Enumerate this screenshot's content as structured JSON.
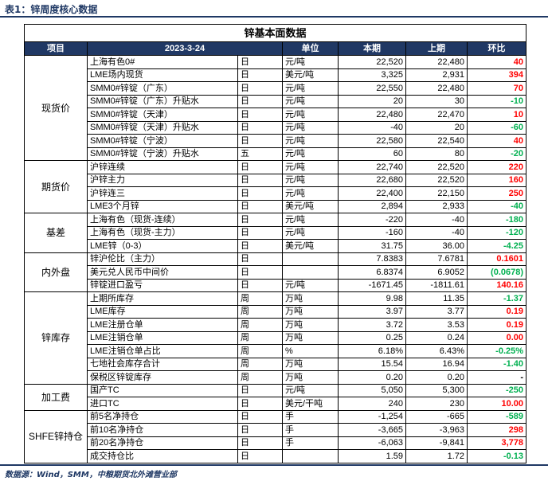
{
  "caption": "表1：锌周度核心数据",
  "source": "数据源：Wind，SMM，中粮期货北外滩营业部",
  "table_title": "锌基本面数据",
  "headers": [
    "项目",
    "2023-3-24",
    "",
    "单位",
    "本期",
    "上期",
    "环比"
  ],
  "groups": [
    {
      "name": "现货价",
      "rows": [
        {
          "item": "上海有色0#",
          "freq": "日",
          "unit": "元/吨",
          "cur": "22,520",
          "prev": "22,480",
          "chg": "40",
          "sign": "pos"
        },
        {
          "item": "LME场内现货",
          "freq": "日",
          "unit": "美元/吨",
          "cur": "3,325",
          "prev": "2,931",
          "chg": "394",
          "sign": "pos"
        },
        {
          "item": "SMM0#锌锭（广东）",
          "freq": "日",
          "unit": "元/吨",
          "cur": "22,550",
          "prev": "22,480",
          "chg": "70",
          "sign": "pos"
        },
        {
          "item": "SMM0#锌锭（广东）升贴水",
          "freq": "日",
          "unit": "元/吨",
          "cur": "20",
          "prev": "30",
          "chg": "-10",
          "sign": "neg"
        },
        {
          "item": "SMM0#锌锭（天津）",
          "freq": "日",
          "unit": "元/吨",
          "cur": "22,480",
          "prev": "22,470",
          "chg": "10",
          "sign": "pos"
        },
        {
          "item": "SMM0#锌锭（天津）升贴水",
          "freq": "日",
          "unit": "元/吨",
          "cur": "-40",
          "prev": "20",
          "chg": "-60",
          "sign": "neg"
        },
        {
          "item": "SMM0#锌锭（宁波）",
          "freq": "日",
          "unit": "元/吨",
          "cur": "22,580",
          "prev": "22,540",
          "chg": "40",
          "sign": "pos"
        },
        {
          "item": "SMM0#锌锭（宁波）升贴水",
          "freq": "五",
          "unit": "元/吨",
          "cur": "60",
          "prev": "80",
          "chg": "-20",
          "sign": "neg"
        }
      ]
    },
    {
      "name": "期货价",
      "rows": [
        {
          "item": "沪锌连续",
          "freq": "日",
          "unit": "元/吨",
          "cur": "22,740",
          "prev": "22,520",
          "chg": "220",
          "sign": "pos"
        },
        {
          "item": "沪锌主力",
          "freq": "日",
          "unit": "元/吨",
          "cur": "22,680",
          "prev": "22,520",
          "chg": "160",
          "sign": "pos"
        },
        {
          "item": "沪锌连三",
          "freq": "日",
          "unit": "元/吨",
          "cur": "22,400",
          "prev": "22,150",
          "chg": "250",
          "sign": "pos"
        },
        {
          "item": "LME3个月锌",
          "freq": "日",
          "unit": "美元/吨",
          "cur": "2,894",
          "prev": "2,933",
          "chg": "-40",
          "sign": "neg"
        }
      ]
    },
    {
      "name": "基差",
      "rows": [
        {
          "item": "上海有色（现货-连续）",
          "freq": "日",
          "unit": "元/吨",
          "cur": "-220",
          "prev": "-40",
          "chg": "-180",
          "sign": "neg"
        },
        {
          "item": "上海有色（现货-主力）",
          "freq": "日",
          "unit": "元/吨",
          "cur": "-160",
          "prev": "-40",
          "chg": "-120",
          "sign": "neg"
        },
        {
          "item": "LME锌（0-3）",
          "freq": "日",
          "unit": "美元/吨",
          "cur": "31.75",
          "prev": "36.00",
          "chg": "-4.25",
          "sign": "neg"
        }
      ]
    },
    {
      "name": "内外盘",
      "rows": [
        {
          "item": "锌沪伦比（主力）",
          "freq": "日",
          "unit": "",
          "cur": "7.8383",
          "prev": "7.6781",
          "chg": "0.1601",
          "sign": "pos"
        },
        {
          "item": "美元兑人民币中间价",
          "freq": "日",
          "unit": "",
          "cur": "6.8374",
          "prev": "6.9052",
          "chg": "(0.0678)",
          "sign": "neg"
        },
        {
          "item": "锌锭进口盈亏",
          "freq": "日",
          "unit": "元/吨",
          "cur": "-1671.45",
          "prev": "-1811.61",
          "chg": "140.16",
          "sign": "pos"
        }
      ]
    },
    {
      "name": "锌库存",
      "rows": [
        {
          "item": "上期所库存",
          "freq": "周",
          "unit": "万吨",
          "cur": "9.98",
          "prev": "11.35",
          "chg": "-1.37",
          "sign": "neg"
        },
        {
          "item": "LME库存",
          "freq": "周",
          "unit": "万吨",
          "cur": "3.97",
          "prev": "3.77",
          "chg": "0.19",
          "sign": "pos"
        },
        {
          "item": "LME注册仓单",
          "freq": "周",
          "unit": "万吨",
          "cur": "3.72",
          "prev": "3.53",
          "chg": "0.19",
          "sign": "pos"
        },
        {
          "item": "LME注销仓单",
          "freq": "周",
          "unit": "万吨",
          "cur": "0.25",
          "prev": "0.24",
          "chg": "0.00",
          "sign": "zero"
        },
        {
          "item": "LME注销仓单占比",
          "freq": "周",
          "unit": "%",
          "cur": "6.18%",
          "prev": "6.43%",
          "chg": "-0.25%",
          "sign": "neg"
        },
        {
          "item": "七地社会库存合计",
          "freq": "周",
          "unit": "万吨",
          "cur": "15.54",
          "prev": "16.94",
          "chg": "-1.40",
          "sign": "neg"
        },
        {
          "item": "保税区锌锭库存",
          "freq": "周",
          "unit": "万吨",
          "cur": "0.20",
          "prev": "0.20",
          "chg": "-",
          "sign": "neu"
        }
      ]
    },
    {
      "name": "加工费",
      "rows": [
        {
          "item": "国产TC",
          "freq": "日",
          "unit": "元/吨",
          "cur": "5,050",
          "prev": "5,300",
          "chg": "-250",
          "sign": "neg"
        },
        {
          "item": "进口TC",
          "freq": "日",
          "unit": "美元/干吨",
          "cur": "240",
          "prev": "230",
          "chg": "10.00",
          "sign": "pos"
        }
      ]
    },
    {
      "name": "SHFE锌持仓",
      "rows": [
        {
          "item": "前5名净持仓",
          "freq": "日",
          "unit": "手",
          "cur": "-1,254",
          "prev": "-665",
          "chg": "-589",
          "sign": "neg"
        },
        {
          "item": "前10名净持仓",
          "freq": "日",
          "unit": "手",
          "cur": "-3,665",
          "prev": "-3,963",
          "chg": "298",
          "sign": "pos"
        },
        {
          "item": "前20名净持仓",
          "freq": "日",
          "unit": "手",
          "cur": "-6,063",
          "prev": "-9,841",
          "chg": "3,778",
          "sign": "pos"
        },
        {
          "item": "成交持仓比",
          "freq": "日",
          "unit": "",
          "cur": "1.59",
          "prev": "1.72",
          "chg": "-0.13",
          "sign": "neg"
        }
      ]
    }
  ]
}
